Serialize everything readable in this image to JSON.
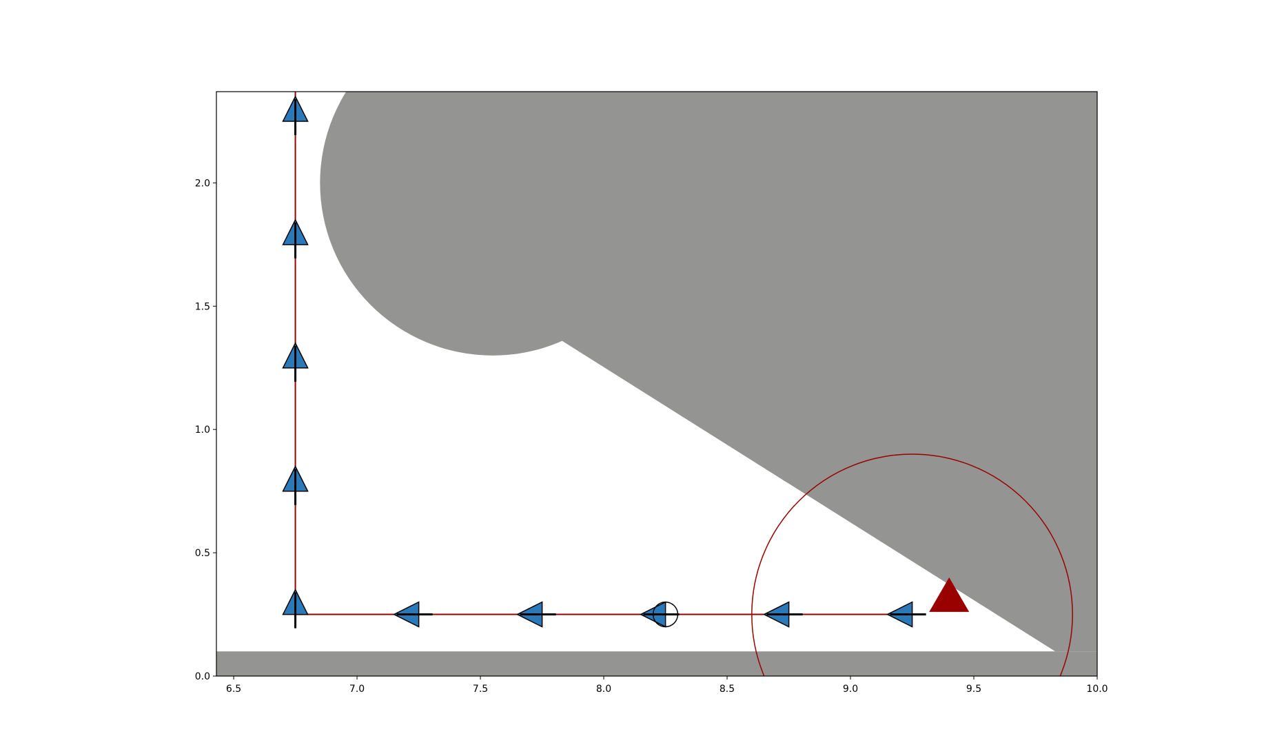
{
  "chart_data": {
    "type": "scatter",
    "title": "",
    "xlabel": "",
    "ylabel": "",
    "xlim": [
      6.43,
      10.0
    ],
    "ylim": [
      0.0,
      2.37
    ],
    "x_ticks": [
      6.5,
      7.0,
      7.5,
      8.0,
      8.5,
      9.0,
      9.5,
      10.0
    ],
    "x_tick_labels": [
      "6.5",
      "7.0",
      "7.5",
      "8.0",
      "8.5",
      "9.0",
      "9.5",
      "10.0"
    ],
    "y_ticks": [
      0.0,
      0.5,
      1.0,
      1.5,
      2.0
    ],
    "y_tick_labels": [
      "0.0",
      "0.5",
      "1.0",
      "1.5",
      "2.0"
    ],
    "grid": false,
    "legend": "none",
    "obstacles": {
      "color": "#949593",
      "floor": {
        "x_range": [
          6.43,
          10.0
        ],
        "y_range": [
          0.0,
          0.1
        ]
      },
      "upper_circle": {
        "center": [
          7.55,
          2.0
        ],
        "radius": 0.7
      },
      "region_polygon": [
        [
          7.55,
          2.37
        ],
        [
          10.0,
          2.37
        ],
        [
          10.0,
          0.1
        ],
        [
          9.83,
          0.1
        ],
        [
          7.83,
          1.36
        ],
        [
          7.55,
          1.3
        ]
      ]
    },
    "path": {
      "color": "#990000",
      "points": [
        [
          9.25,
          0.25
        ],
        [
          6.75,
          0.25
        ],
        [
          6.75,
          2.37
        ]
      ]
    },
    "poses": {
      "marker_color": "#2a7ab9",
      "edge_color": "#000000",
      "points": [
        {
          "x": 9.2,
          "y": 0.25,
          "heading": "left"
        },
        {
          "x": 8.7,
          "y": 0.25,
          "heading": "left"
        },
        {
          "x": 8.2,
          "y": 0.25,
          "heading": "left"
        },
        {
          "x": 7.7,
          "y": 0.25,
          "heading": "left"
        },
        {
          "x": 7.2,
          "y": 0.25,
          "heading": "left"
        },
        {
          "x": 6.75,
          "y": 0.3,
          "heading": "up"
        },
        {
          "x": 6.75,
          "y": 0.8,
          "heading": "up"
        },
        {
          "x": 6.75,
          "y": 1.3,
          "heading": "up"
        },
        {
          "x": 6.75,
          "y": 1.8,
          "heading": "up"
        },
        {
          "x": 6.75,
          "y": 2.3,
          "heading": "up"
        }
      ]
    },
    "goal": {
      "x": 9.4,
      "y": 0.33,
      "color": "#990000"
    },
    "sensor_range": {
      "center": [
        9.25,
        0.25
      ],
      "radius": 0.65,
      "color": "#990000"
    },
    "current_position": {
      "x": 8.25,
      "y": 0.25,
      "radius": 0.05
    }
  }
}
